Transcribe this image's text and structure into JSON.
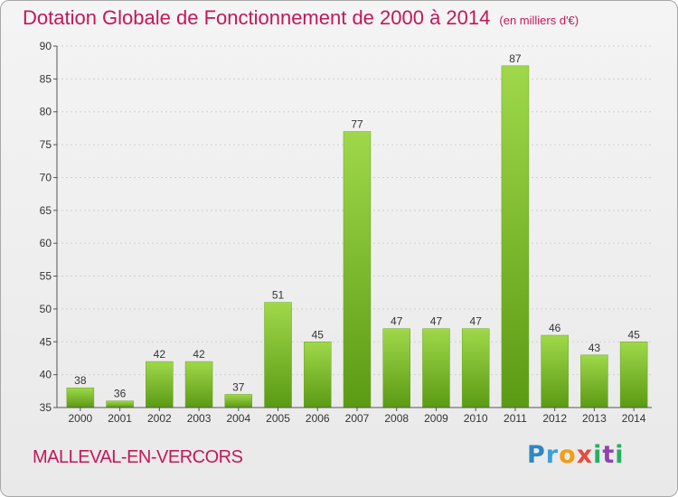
{
  "title": "Dotation Globale de Fonctionnement de 2000 à 2014",
  "unit_label": "(en milliers d'€)",
  "commune": "MALLEVAL-EN-VERCORS",
  "logo": {
    "letters": [
      "P",
      "r",
      "o",
      "x",
      "i",
      "t",
      "i"
    ],
    "colors": [
      "#2e86c1",
      "#3aa0d8",
      "#f39c12",
      "#e74c3c",
      "#27ae60",
      "#8e44ad",
      "#27ae60"
    ]
  },
  "colors": {
    "bar_light": "#9fd84a",
    "bar_dark": "#5b9a14",
    "title": "#c2185b"
  },
  "chart_data": {
    "type": "bar",
    "categories": [
      "2000",
      "2001",
      "2002",
      "2003",
      "2004",
      "2005",
      "2006",
      "2007",
      "2008",
      "2009",
      "2010",
      "2011",
      "2012",
      "2013",
      "2014"
    ],
    "values": [
      38,
      36,
      42,
      42,
      37,
      51,
      45,
      77,
      47,
      47,
      47,
      87,
      46,
      43,
      45
    ],
    "ylim": [
      35,
      90
    ],
    "yticks": [
      35,
      40,
      45,
      50,
      55,
      60,
      65,
      70,
      75,
      80,
      85,
      90
    ],
    "grid": true
  }
}
